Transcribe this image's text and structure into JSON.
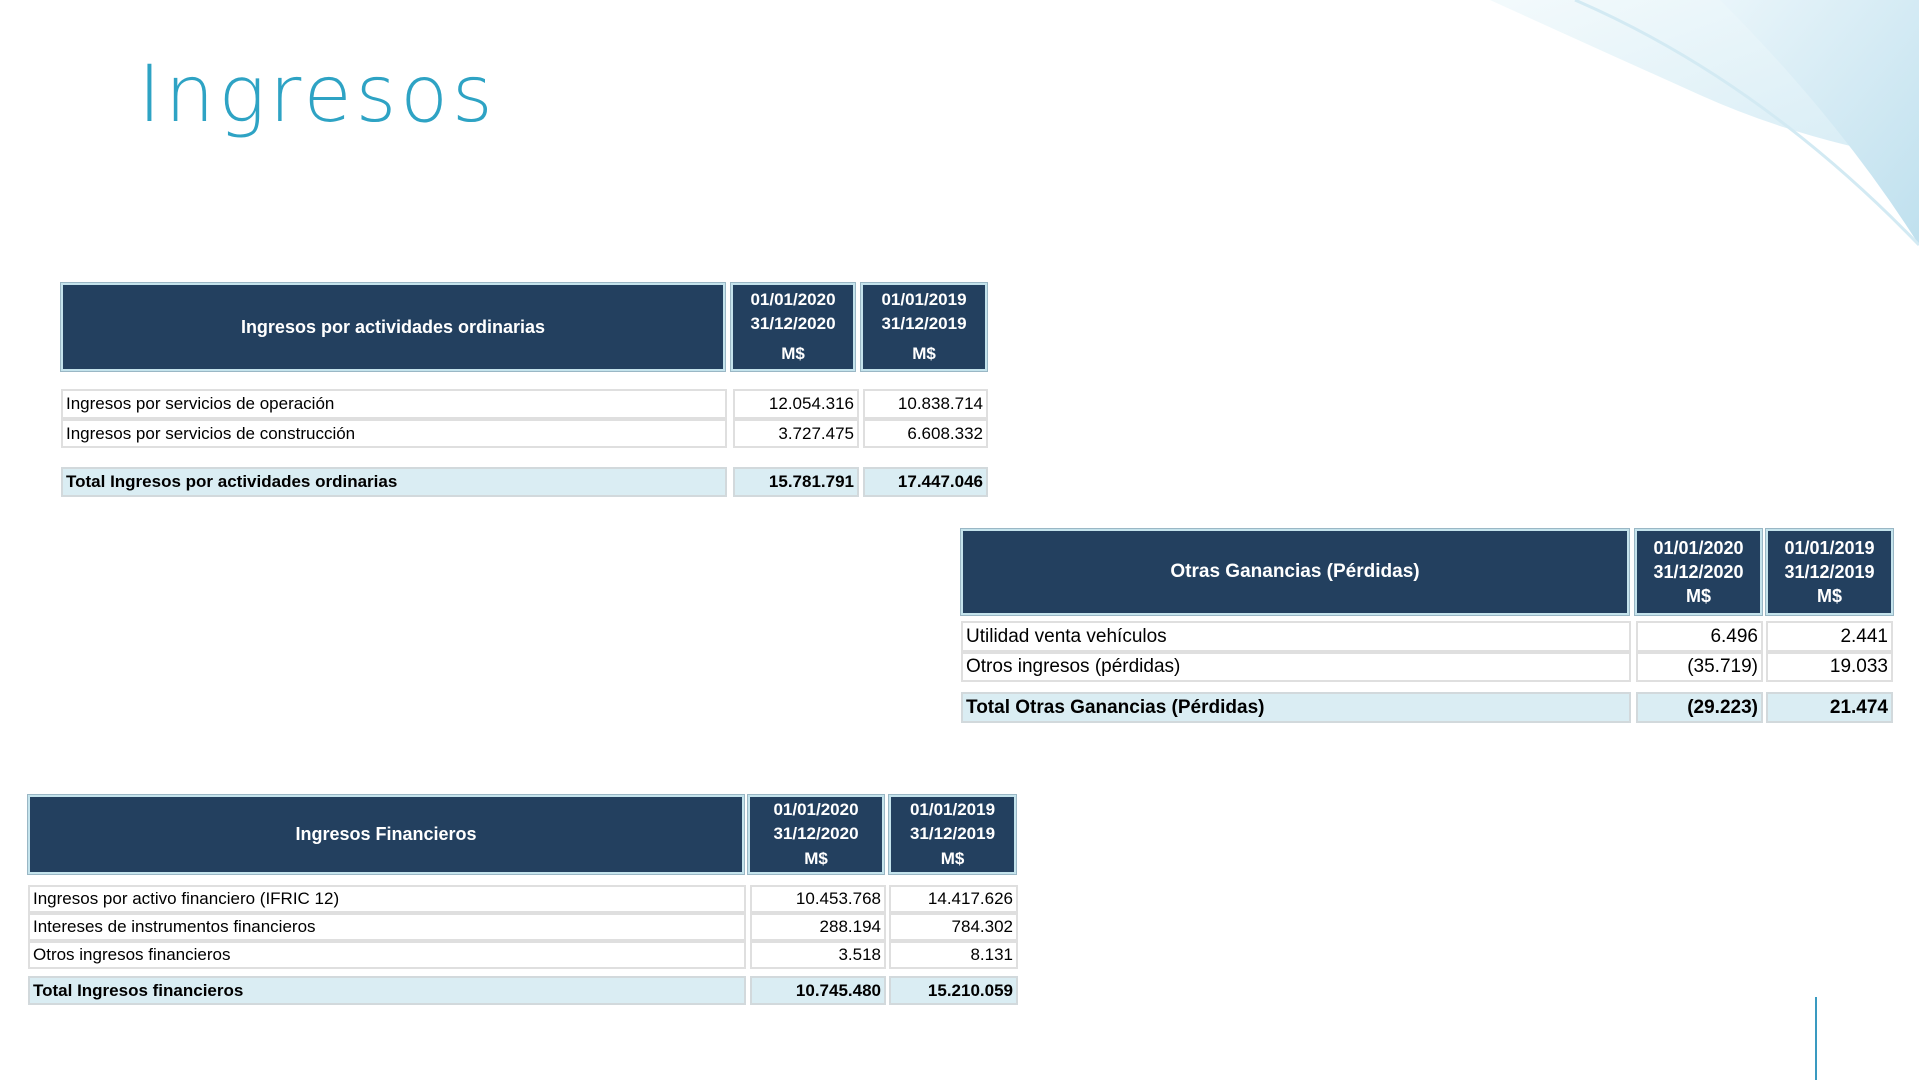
{
  "page": {
    "title": "Ingresos"
  },
  "table_ordinarias": {
    "header": "Ingresos por actividades ordinarias",
    "col1": {
      "line1": "01/01/2020",
      "line2": "31/12/2020",
      "unit": "M$"
    },
    "col2": {
      "line1": "01/01/2019",
      "line2": "31/12/2019",
      "unit": "M$"
    },
    "rows": [
      {
        "label": "Ingresos por servicios de operación",
        "v2020": "12.054.316",
        "v2019": "10.838.714"
      },
      {
        "label": "Ingresos por servicios de construcción",
        "v2020": "3.727.475",
        "v2019": "6.608.332"
      }
    ],
    "total": {
      "label": "Total Ingresos por actividades ordinarias",
      "v2020": "15.781.791",
      "v2019": "17.447.046"
    }
  },
  "table_otras": {
    "header": "Otras Ganancias (Pérdidas)",
    "col1": {
      "line1": "01/01/2020",
      "line2": "31/12/2020",
      "unit": "M$"
    },
    "col2": {
      "line1": "01/01/2019",
      "line2": "31/12/2019",
      "unit": "M$"
    },
    "rows": [
      {
        "label": "Utilidad venta vehículos",
        "v2020": "6.496",
        "v2019": "2.441"
      },
      {
        "label": "Otros ingresos (pérdidas)",
        "v2020": "(35.719)",
        "v2019": "19.033"
      }
    ],
    "total": {
      "label": "Total Otras Ganancias (Pérdidas)",
      "v2020": "(29.223)",
      "v2019": "21.474"
    }
  },
  "table_financieros": {
    "header": "Ingresos Financieros",
    "col1": {
      "line1": "01/01/2020",
      "line2": "31/12/2020",
      "unit": "M$"
    },
    "col2": {
      "line1": "01/01/2019",
      "line2": "31/12/2019",
      "unit": "M$"
    },
    "rows": [
      {
        "label": "Ingresos por activo financiero (IFRIC 12)",
        "v2020": "10.453.768",
        "v2019": "14.417.626"
      },
      {
        "label": "Intereses de instrumentos financieros",
        "v2020": "288.194",
        "v2019": "784.302"
      },
      {
        "label": "Otros ingresos financieros",
        "v2020": "3.518",
        "v2019": "8.131"
      }
    ],
    "total": {
      "label": "Total Ingresos financieros",
      "v2020": "10.745.480",
      "v2019": "15.210.059"
    }
  }
}
